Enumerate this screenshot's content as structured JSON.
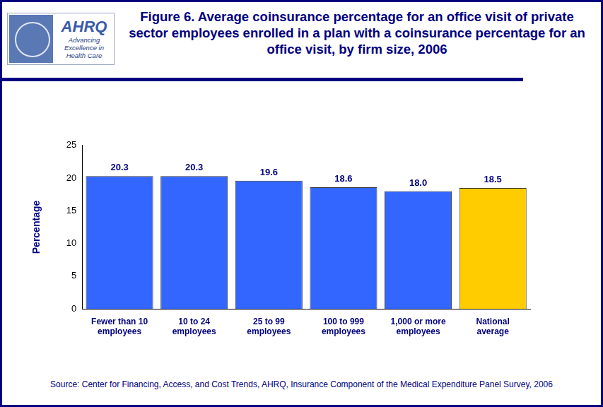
{
  "chart_data": {
    "type": "bar",
    "title": "Figure 6. Average coinsurance percentage for an office visit of private sector employees enrolled in a plan with a coinsurance percentage for an office visit, by firm size, 2006",
    "y_label": "Percentage",
    "source": "Source: Center for Financing, Access, and Cost Trends, AHRQ, Insurance Component of the Medical Expenditure Panel Survey, 2006",
    "logo": {
      "text": "AHRQ",
      "tagline": "Advancing Excellence in Health Care"
    },
    "categories": [
      "Fewer than 10 employees",
      "10 to 24 employees",
      "25 to 99 employees",
      "100 to 999 employees",
      "1,000 or more employees",
      "National average"
    ],
    "values": [
      20.3,
      20.3,
      19.6,
      18.6,
      18.0,
      18.5
    ],
    "value_labels": [
      "20.3",
      "20.3",
      "19.6",
      "18.6",
      "18.0",
      "18.5"
    ],
    "colors": [
      "#3366ff",
      "#3366ff",
      "#3366ff",
      "#3366ff",
      "#3366ff",
      "#ffcc00"
    ],
    "ylim": [
      0,
      25
    ],
    "yticks": [
      0,
      5,
      10,
      15,
      20,
      25
    ],
    "grid": false,
    "data_labels": true
  }
}
